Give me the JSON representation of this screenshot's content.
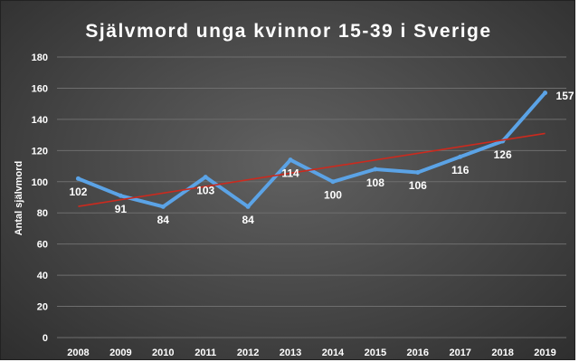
{
  "chart_data": {
    "type": "line",
    "title": "Självmord unga kvinnor 15-39 i Sverige",
    "xlabel": "",
    "ylabel": "Antal självmord",
    "categories": [
      "2008",
      "2009",
      "2010",
      "2011",
      "2012",
      "2013",
      "2014",
      "2015",
      "2016",
      "2017",
      "2018",
      "2019"
    ],
    "series": [
      {
        "values": [
          102,
          91,
          84,
          103,
          84,
          114,
          100,
          108,
          106,
          116,
          126,
          157
        ],
        "color": "#5ba3e6",
        "data_labels": [
          "102",
          "91",
          "84",
          "103",
          "84",
          "114",
          "100",
          "108",
          "106",
          "116",
          "126",
          "157"
        ]
      }
    ],
    "trendline": {
      "type": "linear",
      "color": "#cc2a1e"
    },
    "ylim": [
      0,
      180
    ],
    "yticks": [
      "0",
      "20",
      "40",
      "60",
      "80",
      "100",
      "120",
      "140",
      "160",
      "180"
    ],
    "grid": true,
    "legend": "none"
  }
}
